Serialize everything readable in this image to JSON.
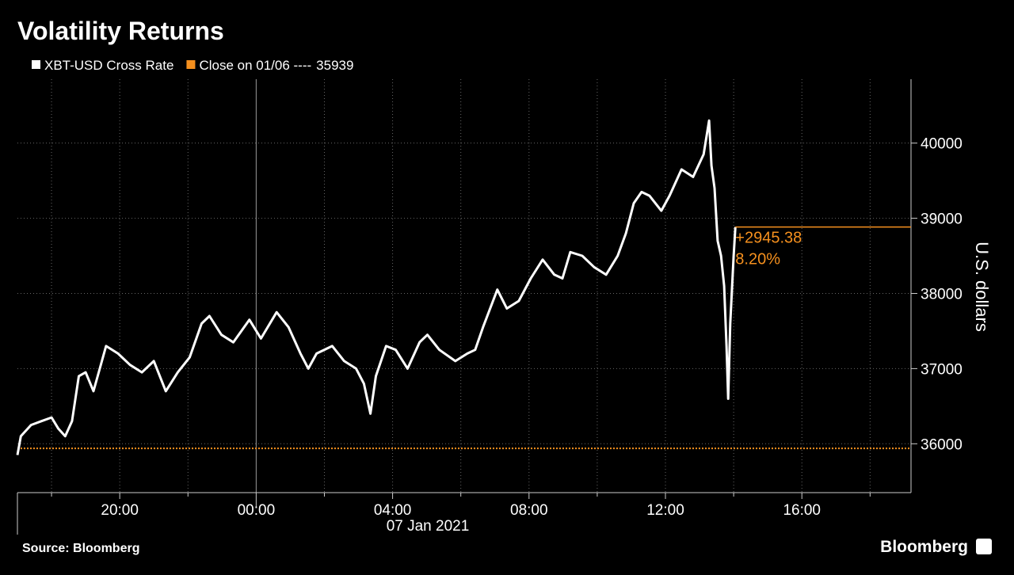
{
  "chart_data": {
    "type": "line",
    "title": "Volatility Returns",
    "x_label": "07 Jan 2021",
    "y_label": "U.S. dollars",
    "source": "Source: Bloomberg",
    "brand": "Bloomberg",
    "xlim": [
      -7,
      19.2
    ],
    "xticks": [
      {
        "value": -4,
        "label": "20:00"
      },
      {
        "value": 0,
        "label": "00:00"
      },
      {
        "value": 4,
        "label": "04:00"
      },
      {
        "value": 8,
        "label": "08:00"
      },
      {
        "value": 12,
        "label": "12:00"
      },
      {
        "value": 16,
        "label": "16:00"
      }
    ],
    "x_minor_ticks": [
      -6,
      -2,
      2,
      6,
      10,
      14,
      18
    ],
    "ylim": [
      35350,
      40850
    ],
    "yticks": [
      36000,
      37000,
      38000,
      39000,
      40000
    ],
    "grid": true,
    "series": [
      {
        "name": "XBT-USD Cross Rate",
        "color": "#ffffff",
        "x": [
          -7.0,
          -6.9,
          -6.6,
          -6.3,
          -6.0,
          -5.8,
          -5.6,
          -5.4,
          -5.2,
          -5.0,
          -4.77,
          -4.4,
          -4.05,
          -3.7,
          -3.35,
          -3.0,
          -2.65,
          -2.3,
          -1.95,
          -1.6,
          -1.37,
          -1.02,
          -0.67,
          -0.2,
          0.14,
          0.6,
          0.95,
          1.3,
          1.53,
          1.77,
          2.23,
          2.58,
          2.93,
          3.16,
          3.35,
          3.51,
          3.81,
          4.09,
          4.44,
          4.79,
          5.02,
          5.37,
          5.84,
          6.19,
          6.42,
          6.65,
          7.07,
          7.35,
          7.7,
          8.05,
          8.4,
          8.74,
          8.98,
          9.21,
          9.56,
          9.91,
          10.26,
          10.6,
          10.84,
          11.07,
          11.3,
          11.53,
          11.88,
          12.12,
          12.47,
          12.81,
          13.12,
          13.28,
          13.35,
          13.44,
          13.53,
          13.63,
          13.72,
          13.79,
          13.84,
          13.9,
          14.0,
          14.05
        ],
        "values": [
          35850,
          36100,
          36250,
          36300,
          36350,
          36200,
          36100,
          36300,
          36900,
          36950,
          36700,
          37300,
          37200,
          37050,
          36950,
          37100,
          36700,
          36950,
          37150,
          37600,
          37700,
          37450,
          37350,
          37650,
          37400,
          37750,
          37550,
          37200,
          37000,
          37200,
          37300,
          37100,
          37000,
          36800,
          36400,
          36900,
          37300,
          37250,
          37000,
          37350,
          37450,
          37250,
          37100,
          37200,
          37250,
          37550,
          38050,
          37800,
          37900,
          38200,
          38450,
          38250,
          38200,
          38550,
          38500,
          38350,
          38250,
          38500,
          38800,
          39200,
          39350,
          39300,
          39100,
          39300,
          39650,
          39550,
          39850,
          40300,
          39700,
          39400,
          38700,
          38500,
          38100,
          37300,
          36600,
          37600,
          38500,
          38884
        ]
      }
    ],
    "reference": {
      "name": "Close on 01/06 ----",
      "value": 35939,
      "color": "#f5901e"
    },
    "annotations": [
      "+2945.38",
      "8.20%"
    ]
  }
}
